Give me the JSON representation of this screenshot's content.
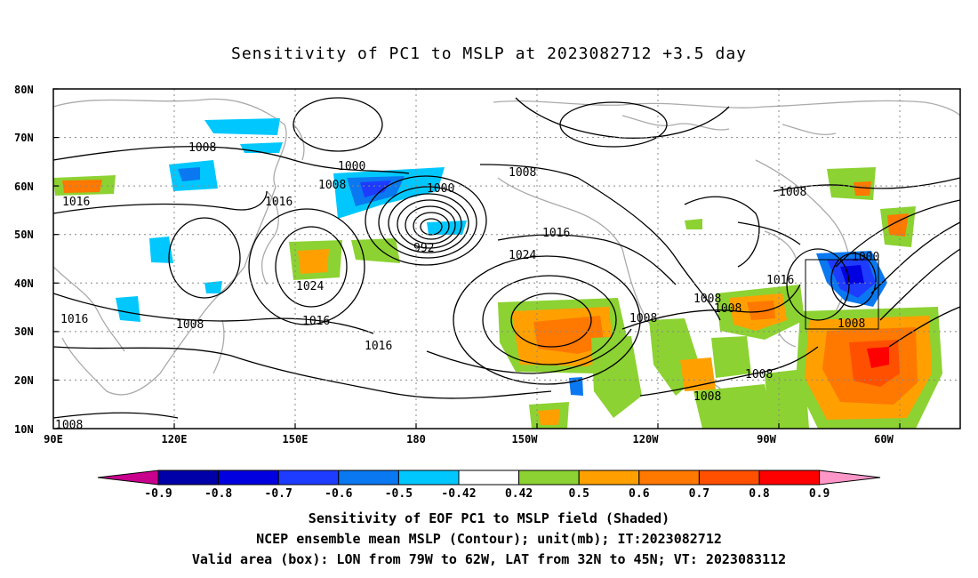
{
  "title": "Sensitivity of PC1 to MSLP at 2023082712 +3.5 day",
  "map": {
    "lat_ticks": [
      "80N",
      "70N",
      "60N",
      "50N",
      "40N",
      "30N",
      "20N",
      "10N"
    ],
    "lon_ticks": [
      "90E",
      "120E",
      "150E",
      "180",
      "150W",
      "120W",
      "90W",
      "60W"
    ],
    "contour_labels": [
      {
        "text": "1008"
      },
      {
        "text": "1000"
      },
      {
        "text": "1008"
      },
      {
        "text": "1016"
      },
      {
        "text": "1000"
      },
      {
        "text": "1008"
      },
      {
        "text": "1016"
      },
      {
        "text": "992"
      },
      {
        "text": "1016"
      },
      {
        "text": "1024"
      },
      {
        "text": "1024"
      },
      {
        "text": "1016"
      },
      {
        "text": "1008"
      },
      {
        "text": "1016"
      },
      {
        "text": "1008"
      },
      {
        "text": "1016"
      },
      {
        "text": "1008"
      },
      {
        "text": "1008"
      },
      {
        "text": "1008"
      },
      {
        "text": "1008"
      },
      {
        "text": "1008"
      },
      {
        "text": "1016"
      },
      {
        "text": "1000"
      },
      {
        "text": "1008"
      },
      {
        "text": "1008"
      }
    ]
  },
  "colorbar": {
    "labels": [
      "-0.9",
      "-0.8",
      "-0.7",
      "-0.6",
      "-0.5",
      "-0.42",
      "0.42",
      "0.5",
      "0.6",
      "0.7",
      "0.8",
      "0.9"
    ],
    "colors": [
      "#0000a8",
      "#0000e0",
      "#1e3cff",
      "#0a78f0",
      "#00c8ff",
      "#ffffff",
      "#8cd232",
      "#ffa000",
      "#ff7800",
      "#ff5000",
      "#ff0000"
    ],
    "low_end_color": "#c8008c",
    "high_end_color": "#ff96c8"
  },
  "captions": {
    "line1": "Sensitivity of EOF PC1 to MSLP field (Shaded)",
    "line2": "NCEP ensemble mean MSLP (Contour); unit(mb); IT:2023082712",
    "line3": "Valid area (box): LON from 79W to 62W, LAT from 32N to 45N; VT: 2023083112"
  }
}
